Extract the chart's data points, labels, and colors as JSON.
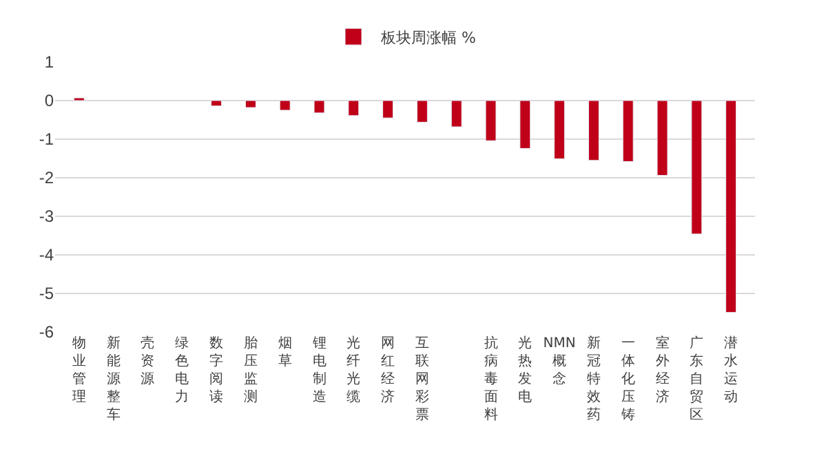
{
  "chart_data": {
    "type": "bar",
    "categories": [
      "物业管理",
      "新能源整车",
      "壳资源",
      "绿色电力",
      "数字阅读",
      "胎压监测",
      "烟草",
      "锂电制造",
      "光纤光缆",
      "网红经济",
      "互联网彩票",
      null,
      "抗病毒面料",
      "光热发电",
      "NMN概念",
      "新冠特效药",
      "一体化压铸",
      "室外经济",
      "广东自贸区",
      "潜水运动"
    ],
    "series": [
      {
        "name": "板块周涨幅 %",
        "color": "#c00018",
        "values": [
          0.07,
          null,
          null,
          null,
          -0.14,
          -0.18,
          -0.25,
          -0.32,
          -0.39,
          -0.45,
          -0.56,
          -0.68,
          -1.04,
          -1.24,
          -1.51,
          -1.55,
          -1.58,
          -1.94,
          -3.46,
          -5.49
        ]
      }
    ],
    "ylim": [
      -6,
      1
    ],
    "yticks": [
      -6,
      -5,
      -4,
      -3,
      -2,
      -1,
      0,
      1
    ],
    "grid": "y",
    "legend": "top"
  }
}
